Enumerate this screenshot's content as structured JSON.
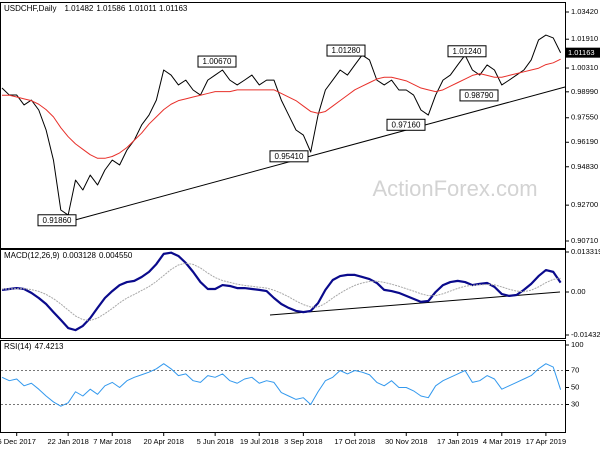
{
  "chart_data": [
    {
      "type": "line",
      "title": "USDCHF,Daily",
      "ohlc": [
        1.01482,
        1.01586,
        1.01011,
        1.01163
      ],
      "last_price": 1.01163,
      "watermark": "ActionForex.com",
      "ylim": [
        0.9071,
        1.0342
      ],
      "yticks": [
        {
          "value": 1.0342,
          "label": "1.03420"
        },
        {
          "value": 1.0191,
          "label": "1.01910"
        },
        {
          "value": 1.0031,
          "label": "1.00310"
        },
        {
          "value": 0.9899,
          "label": "0.98990"
        },
        {
          "value": 0.9755,
          "label": "0.97550"
        },
        {
          "value": 0.9619,
          "label": "0.96190"
        },
        {
          "value": 0.9483,
          "label": "0.94830"
        },
        {
          "value": 0.927,
          "label": "0.92700"
        },
        {
          "value": 0.9071,
          "label": "0.90710"
        }
      ],
      "annotations": [
        {
          "value": 0.9186,
          "label": "0.91860"
        },
        {
          "value": 0.9541,
          "label": "0.95410"
        },
        {
          "value": 1.0067,
          "label": "1.00670"
        },
        {
          "value": 1.0128,
          "label": "1.01280"
        },
        {
          "value": 0.9716,
          "label": "0.97160"
        },
        {
          "value": 1.0124,
          "label": "1.01240"
        },
        {
          "value": 0.9879,
          "label": "0.98790"
        }
      ],
      "series": [
        {
          "color": "#000000",
          "values": [
            0.992,
            0.9881,
            0.9881,
            0.9826,
            0.9853,
            0.9798,
            0.9687,
            0.952,
            0.9243,
            0.9215,
            0.9409,
            0.9354,
            0.9437,
            0.9382,
            0.9465,
            0.952,
            0.9493,
            0.9576,
            0.9631,
            0.9715,
            0.977,
            0.9853,
            1.002,
            0.9992,
            0.9937,
            0.9964,
            0.9909,
            0.9881,
            0.9964,
            0.9992,
            1.002,
            0.9964,
            0.9937,
            0.9964,
            0.9992,
            0.9937,
            0.9964,
            0.9964,
            0.9853,
            0.977,
            0.9687,
            0.9659,
            0.9565,
            0.977,
            0.9909,
            0.9964,
            1.002,
            0.9992,
            1.0048,
            1.0103,
            1.0076,
            0.9964,
            0.9937,
            0.9964,
            0.9909,
            0.9909,
            0.9881,
            0.9798,
            0.977,
            0.9881,
            0.9964,
            0.9992,
            1.0048,
            1.0103,
            1.002,
            0.9992,
            1.0048,
            1.002,
            0.9937,
            0.9964,
            0.9992,
            1.002,
            1.0076,
            1.0187,
            1.0214,
            1.0198,
            1.0116
          ]
        },
        {
          "color": "#e8302a",
          "values": [
            0.988,
            0.988,
            0.987,
            0.986,
            0.985,
            0.983,
            0.98,
            0.976,
            0.97,
            0.965,
            0.961,
            0.958,
            0.955,
            0.953,
            0.953,
            0.954,
            0.956,
            0.959,
            0.963,
            0.967,
            0.972,
            0.976,
            0.98,
            0.983,
            0.985,
            0.986,
            0.987,
            0.988,
            0.989,
            0.99,
            0.99,
            0.99,
            0.991,
            0.991,
            0.991,
            0.991,
            0.991,
            0.991,
            0.989,
            0.987,
            0.985,
            0.982,
            0.979,
            0.978,
            0.979,
            0.982,
            0.985,
            0.988,
            0.991,
            0.993,
            0.995,
            0.997,
            0.998,
            0.998,
            0.997,
            0.996,
            0.994,
            0.992,
            0.991,
            0.99,
            0.991,
            0.993,
            0.995,
            0.997,
            0.999,
            1.0,
            0.999,
            0.998,
            0.998,
            0.999,
            1.0,
            1.001,
            1.002,
            1.003,
            1.005,
            1.006,
            1.008
          ]
        }
      ]
    },
    {
      "type": "line",
      "title": "MACD(12,26,9)",
      "header_values": [
        0.003128,
        {
          "value": 0.00455,
          "label": "0.004550"
        }
      ],
      "ylim": [
        -0.014323,
        0.013319
      ],
      "yticks": [
        0.013319,
        {
          "value": 0,
          "label": "0.00"
        },
        -0.014323
      ],
      "series": [
        {
          "color": "#0a0a8c",
          "values": [
            0.0007,
            0.001,
            0.0013,
            0.001,
            -0.0003,
            -0.002,
            -0.004,
            -0.0067,
            -0.0093,
            -0.012,
            -0.0127,
            -0.0113,
            -0.0087,
            -0.0053,
            -0.002,
            0.0003,
            0.0023,
            0.0033,
            0.0037,
            0.005,
            0.0067,
            0.0093,
            0.0127,
            0.0131,
            0.012,
            0.0097,
            0.0067,
            0.0033,
            0.001,
            0.001,
            0.0023,
            0.002,
            0.0013,
            0.0013,
            0.001,
            0.0007,
            0.0003,
            -0.002,
            -0.004,
            -0.0053,
            -0.0063,
            -0.0067,
            -0.0063,
            -0.0037,
            0.0007,
            0.004,
            0.0053,
            0.0057,
            0.0057,
            0.005,
            0.0043,
            0.003,
            0.0007,
            0.0003,
            -0.0003,
            -0.0013,
            -0.0023,
            -0.0033,
            -0.003,
            0,
            0.0023,
            0.0033,
            0.0037,
            0.0033,
            0.0023,
            0.0027,
            0.003,
            0.0017,
            -0.0007,
            -0.0013,
            -0.001,
            0.0007,
            0.0027,
            0.0053,
            0.0073,
            0.0067,
            0.003128
          ]
        },
        {
          "color": "#a8a8a8",
          "values": [
            0.001,
            0.001,
            0.0011,
            0.0011,
            0.0008,
            0.0002,
            -0.0008,
            -0.0022,
            -0.004,
            -0.006,
            -0.008,
            -0.0092,
            -0.0095,
            -0.0087,
            -0.0072,
            -0.0055,
            -0.0036,
            -0.002,
            -0.0008,
            0.0005,
            0.0018,
            0.0035,
            0.0055,
            0.0075,
            0.009,
            0.0096,
            0.0092,
            0.008,
            0.0063,
            0.0048,
            0.0038,
            0.0032,
            0.0026,
            0.0022,
            0.0019,
            0.0016,
            0.0013,
            0.0006,
            -0.0004,
            -0.0016,
            -0.003,
            -0.0042,
            -0.005,
            -0.005,
            -0.0038,
            -0.002,
            -0.0004,
            0.001,
            0.0022,
            0.003,
            0.0035,
            0.0036,
            0.0032,
            0.0026,
            0.0019,
            0.0011,
            0.0003,
            -0.0006,
            -0.0012,
            -0.0012,
            -0.0006,
            0.0003,
            0.0012,
            0.0019,
            0.0022,
            0.0024,
            0.0025,
            0.0024,
            0.0017,
            0.0009,
            0.0003,
            0.0001,
            0.0006,
            0.0017,
            0.0031,
            0.0042,
            0.00455
          ]
        }
      ]
    },
    {
      "type": "line",
      "title": "RSI(14)",
      "header_values": [
        47.4213
      ],
      "ylim": [
        0,
        100
      ],
      "yticks": [
        100,
        70,
        50,
        30
      ],
      "levels": [
        70,
        30
      ],
      "categories": [
        null,
        null,
        "5 Dec 2017",
        null,
        null,
        null,
        null,
        null,
        null,
        "22 Jan 2018",
        null,
        null,
        null,
        null,
        null,
        "7 Mar 2018",
        null,
        null,
        null,
        null,
        null,
        null,
        "20 Apr 2018",
        null,
        null,
        null,
        null,
        null,
        null,
        "5 Jun 2018",
        null,
        null,
        null,
        null,
        null,
        "19 Jul 2018",
        null,
        null,
        null,
        null,
        null,
        "3 Sep 2018",
        null,
        null,
        null,
        null,
        null,
        null,
        "17 Oct 2018",
        null,
        null,
        null,
        null,
        null,
        null,
        "30 Nov 2018",
        null,
        null,
        null,
        null,
        null,
        null,
        "17 Jan 2019",
        null,
        null,
        null,
        null,
        null,
        "4 Mar 2019",
        null,
        null,
        null,
        null,
        null,
        "17 Apr 2019",
        null,
        null
      ],
      "series": [
        {
          "color": "#3399ee",
          "values": [
            62,
            58,
            60,
            52,
            55,
            48,
            40,
            33,
            28,
            32,
            45,
            40,
            48,
            42,
            52,
            56,
            50,
            58,
            62,
            65,
            68,
            72,
            78,
            72,
            64,
            66,
            58,
            56,
            64,
            62,
            66,
            58,
            55,
            60,
            62,
            55,
            58,
            56,
            44,
            40,
            36,
            38,
            30,
            45,
            58,
            62,
            70,
            66,
            70,
            68,
            65,
            56,
            52,
            58,
            50,
            50,
            46,
            40,
            38,
            52,
            58,
            62,
            66,
            70,
            56,
            58,
            64,
            60,
            48,
            52,
            56,
            60,
            64,
            72,
            78,
            74,
            47.4213
          ]
        }
      ]
    }
  ]
}
